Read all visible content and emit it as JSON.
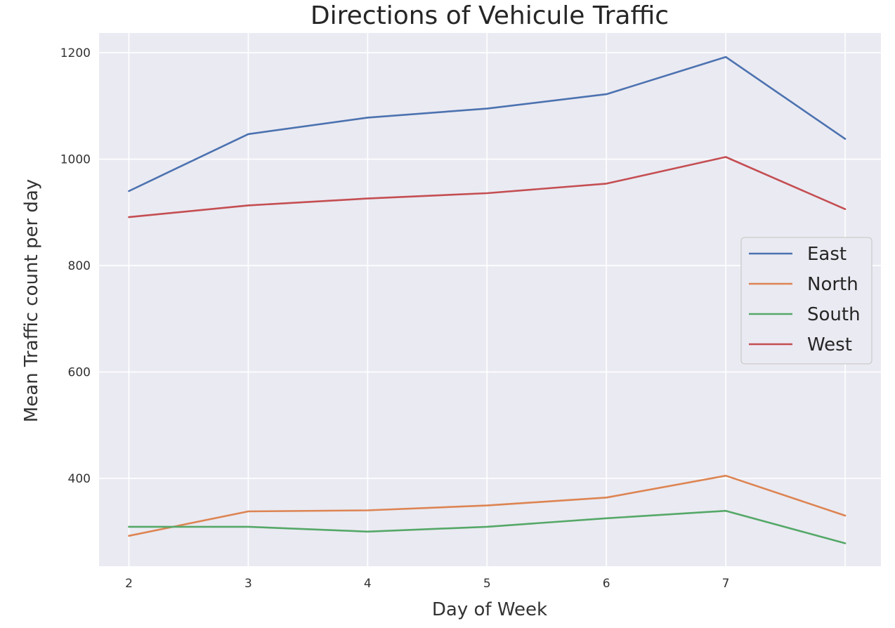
{
  "chart_data": {
    "type": "line",
    "title": "Directions of Vehicule Traffic",
    "xlabel": "Day of Week",
    "ylabel": "Mean Traffic count per day",
    "x": [
      2,
      3,
      4,
      5,
      6,
      7,
      8
    ],
    "xticks": [
      2,
      3,
      4,
      5,
      6,
      7
    ],
    "yticks": [
      400,
      600,
      800,
      1000,
      1200
    ],
    "xlim": [
      1.75,
      8.3
    ],
    "ylim": [
      235,
      1237
    ],
    "grid": true,
    "legend_position": "center-right",
    "series": [
      {
        "name": "East",
        "color": "#4c72b0",
        "values": [
          940,
          1047,
          1078,
          1095,
          1122,
          1192,
          1038
        ]
      },
      {
        "name": "North",
        "color": "#dd8452",
        "values": [
          292,
          338,
          340,
          349,
          364,
          405,
          330
        ]
      },
      {
        "name": "South",
        "color": "#55a868",
        "values": [
          309,
          309,
          300,
          309,
          325,
          339,
          278
        ]
      },
      {
        "name": "West",
        "color": "#c44e52",
        "values": [
          891,
          913,
          926,
          936,
          954,
          1004,
          906
        ]
      }
    ]
  }
}
